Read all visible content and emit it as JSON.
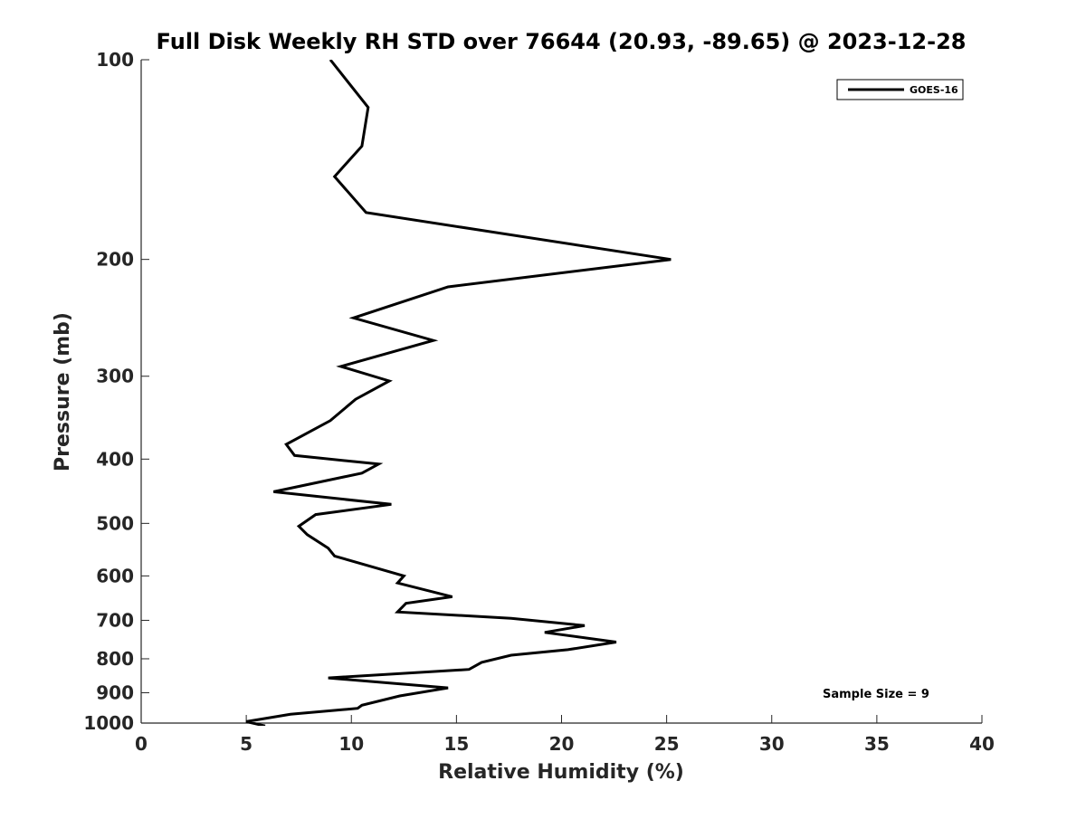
{
  "chart_data": {
    "type": "line",
    "title": "Full Disk Weekly RH STD over 76644 (20.93, -89.65) @ 2023-12-28",
    "xlabel": "Relative Humidity (%)",
    "ylabel": "Pressure (mb)",
    "xlim": [
      0,
      40
    ],
    "ylim": [
      100,
      1000
    ],
    "y_scale": "log",
    "y_inverted": true,
    "x_ticks": [
      "0",
      "5",
      "10",
      "15",
      "20",
      "25",
      "30",
      "35",
      "40"
    ],
    "y_ticks": [
      "100",
      "200",
      "300",
      "400",
      "500",
      "600",
      "700",
      "800",
      "900",
      "1000"
    ],
    "legend": {
      "position": "top-right",
      "entries": [
        "GOES-16"
      ]
    },
    "annotation": "Sample Size = 9",
    "grid": false,
    "series": [
      {
        "name": "GOES-16",
        "color": "#000000",
        "x": [
          9.0,
          10.8,
          10.5,
          9.2,
          10.7,
          25.2,
          14.6,
          10.1,
          13.9,
          9.5,
          11.8,
          10.2,
          9.0,
          6.9,
          7.3,
          11.3,
          10.5,
          6.3,
          11.9,
          8.3,
          7.5,
          7.9,
          8.9,
          9.2,
          12.5,
          12.2,
          14.8,
          12.6,
          12.2,
          17.6,
          21.1,
          19.2,
          22.6,
          20.3,
          17.6,
          16.2,
          15.6,
          8.9,
          14.6,
          12.3,
          10.5,
          10.3,
          7.1,
          5.0,
          5.9
        ],
        "y": [
          100,
          118,
          135,
          150,
          170,
          200,
          220,
          245,
          265,
          290,
          305,
          325,
          350,
          380,
          395,
          407,
          420,
          448,
          468,
          485,
          505,
          520,
          545,
          560,
          600,
          615,
          645,
          660,
          680,
          695,
          713,
          730,
          755,
          775,
          790,
          810,
          830,
          855,
          885,
          910,
          940,
          950,
          970,
          995,
          1010
        ]
      }
    ]
  }
}
